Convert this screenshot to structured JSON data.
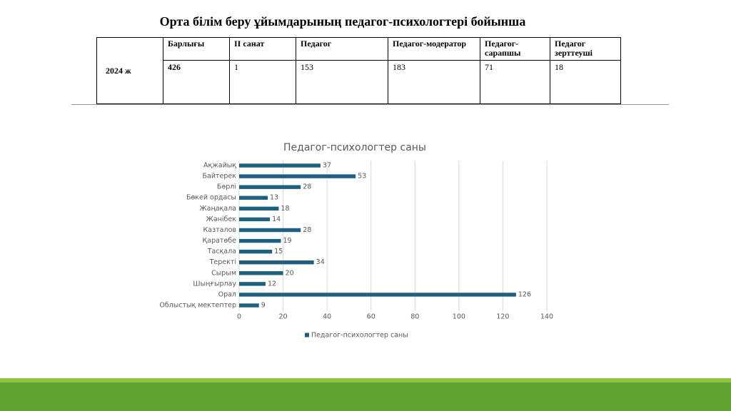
{
  "title": "Орта білім беру ұйымдарының педагог-психологтері  бойынша",
  "table": {
    "year": "2024 ж",
    "header": [
      "Барлығы",
      "II санат",
      "Педагог",
      "Педагог-модератор",
      "Педагог-сарапшы",
      "Педагог зерттеуші"
    ],
    "row": [
      "426",
      "1",
      "153",
      "183",
      "71",
      "18"
    ]
  },
  "chart_data": {
    "type": "hbar",
    "title": "Педагог-психологтер саны",
    "categories": [
      "Ақжайық",
      "Байтерек",
      "Бөрлі",
      "Бөкей ордасы",
      "Жаңақала",
      "Жәнібек",
      "Казталов",
      "Қаратөбе",
      "Тасқала",
      "Теректі",
      "Сырым",
      "Шыңғырлау",
      "Орал",
      "Облыстық мектептер"
    ],
    "series": [
      {
        "name": "Педагог-психологтер саны",
        "color": "#1f5f80",
        "values": [
          37,
          53,
          28,
          13,
          18,
          14,
          28,
          19,
          15,
          34,
          20,
          12,
          126,
          9
        ]
      }
    ],
    "xlim": [
      0,
      140
    ],
    "xticks": [
      0,
      20,
      40,
      60,
      80,
      100,
      120,
      140
    ],
    "grid": true,
    "legend": "bottom"
  }
}
